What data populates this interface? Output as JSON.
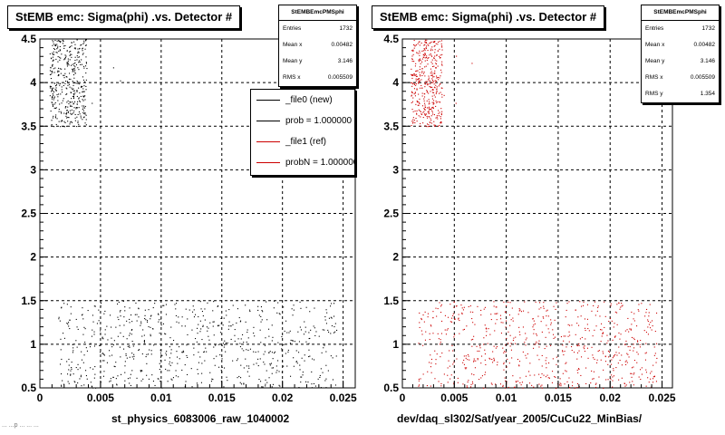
{
  "corner_text": "... ...p ... ... ...",
  "panels": [
    {
      "title": "StEMB emc: Sigma(phi) .vs. Detector #",
      "xlabel": "st_physics_6083006_raw_1040002",
      "stats": {
        "title": "StEMBEmcPMSphi",
        "rows": [
          {
            "label": "Entries",
            "value": "1732"
          },
          {
            "label": "Mean x",
            "value": "0.00482"
          },
          {
            "label": "Mean y",
            "value": "3.146"
          },
          {
            "label": "RMS x",
            "value": "0.005509"
          }
        ]
      },
      "legend": [
        {
          "label": "_file0 (new)",
          "color": "#000000"
        },
        {
          "label": "prob = 1.000000",
          "color": "#000000"
        },
        {
          "label": "_file1 (ref)",
          "color": "#cc0000"
        },
        {
          "label": "probN = 1.000000",
          "color": "#cc0000"
        }
      ]
    },
    {
      "title": "StEMB emc: Sigma(phi) .vs. Detector #",
      "xlabel": "dev/daq_sl302/Sat/year_2005/CuCu22_MinBias/",
      "stats": {
        "title": "StEMBEmcPMSphi",
        "rows": [
          {
            "label": "Entries",
            "value": "1732"
          },
          {
            "label": "Mean x",
            "value": "0.00482"
          },
          {
            "label": "Mean y",
            "value": "3.146"
          },
          {
            "label": "RMS x",
            "value": "0.005509"
          },
          {
            "label": "RMS y",
            "value": "1.354"
          }
        ]
      }
    }
  ],
  "chart_data": [
    {
      "type": "scatter",
      "title": "StEMB emc: Sigma(phi) .vs. Detector #",
      "xlabel": "st_physics_6083006_raw_1040002",
      "xlim": [
        0,
        0.026
      ],
      "ylim": [
        0.5,
        4.5
      ],
      "x_ticks": [
        0,
        0.005,
        0.01,
        0.015,
        0.02,
        0.025
      ],
      "x_tick_labels": [
        "0",
        "0.005",
        "0.01",
        "0.015",
        "0.02",
        "0.025"
      ],
      "y_ticks": [
        0.5,
        1,
        1.5,
        2,
        2.5,
        3,
        3.5,
        4,
        4.5
      ],
      "y_tick_labels": [
        "0.5",
        "1",
        "1.5",
        "2",
        "2.5",
        "3",
        "3.5",
        "4",
        "4.5"
      ],
      "grid": true,
      "series": [
        {
          "name": "_file0 (new)",
          "color": "#000000",
          "clusters": [
            {
              "x_range": [
                0.0008,
                0.0038
              ],
              "y_range": [
                3.5,
                4.5
              ],
              "count": 420
            },
            {
              "x_range": [
                0.0038,
                0.0068
              ],
              "y_range": [
                3.7,
                4.4
              ],
              "count": 4
            },
            {
              "x_range": [
                0.0015,
                0.0245
              ],
              "y_range": [
                0.5,
                1.5
              ],
              "count": 700
            }
          ]
        }
      ]
    },
    {
      "type": "scatter",
      "title": "StEMB emc: Sigma(phi) .vs. Detector #",
      "xlabel": "dev/daq_sl302/Sat/year_2005/CuCu22_MinBias/",
      "xlim": [
        0,
        0.026
      ],
      "ylim": [
        0.5,
        4.5
      ],
      "x_ticks": [
        0,
        0.005,
        0.01,
        0.015,
        0.02,
        0.025
      ],
      "x_tick_labels": [
        "0",
        "0.005",
        "0.01",
        "0.015",
        "0.02",
        "0.025"
      ],
      "y_ticks": [
        0.5,
        1,
        1.5,
        2,
        2.5,
        3,
        3.5,
        4,
        4.5
      ],
      "y_tick_labels": [
        "0.5",
        "1",
        "1.5",
        "2",
        "2.5",
        "3",
        "3.5",
        "4",
        "4.5"
      ],
      "grid": true,
      "series": [
        {
          "name": "_file1 (ref)",
          "color": "#cc0000",
          "clusters": [
            {
              "x_range": [
                0.0008,
                0.0038
              ],
              "y_range": [
                3.5,
                4.5
              ],
              "count": 420
            },
            {
              "x_range": [
                0.0038,
                0.0068
              ],
              "y_range": [
                3.7,
                4.4
              ],
              "count": 4
            },
            {
              "x_range": [
                0.0015,
                0.0245
              ],
              "y_range": [
                0.5,
                1.5
              ],
              "count": 700
            }
          ]
        }
      ]
    }
  ]
}
